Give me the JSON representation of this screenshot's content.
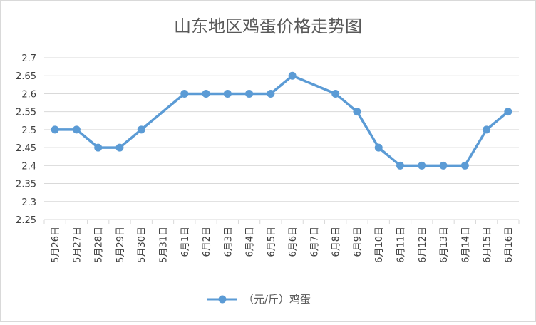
{
  "chart_data": {
    "type": "line",
    "title": "山东地区鸡蛋价格走势图",
    "categories": [
      "5月26日",
      "5月27日",
      "5月28日",
      "5月29日",
      "5月30日",
      "5月31日",
      "6月1日",
      "6月2日",
      "6月3日",
      "6月4日",
      "6月5日",
      "6月6日",
      "6月7日",
      "6月8日",
      "6月9日",
      "6月10日",
      "6月11日",
      "6月12日",
      "6月13日",
      "6月14日",
      "6月15日",
      "6月16日"
    ],
    "series": [
      {
        "name": "（元/斤）鸡蛋",
        "color": "#5b9bd5",
        "values": [
          2.5,
          2.5,
          2.45,
          2.45,
          2.5,
          null,
          2.6,
          2.6,
          2.6,
          2.6,
          2.6,
          2.65,
          null,
          2.6,
          2.55,
          2.45,
          2.4,
          2.4,
          2.4,
          2.4,
          2.5,
          2.55
        ]
      }
    ],
    "ylim": [
      2.25,
      2.7
    ],
    "yticks": [
      2.25,
      2.3,
      2.35,
      2.4,
      2.45,
      2.5,
      2.55,
      2.6,
      2.65,
      2.7
    ],
    "ytick_labels": [
      "2.25",
      "2.3",
      "2.35",
      "2.4",
      "2.45",
      "2.5",
      "2.55",
      "2.6",
      "2.65",
      "2.7"
    ],
    "grid": true,
    "legend": "bottom"
  }
}
